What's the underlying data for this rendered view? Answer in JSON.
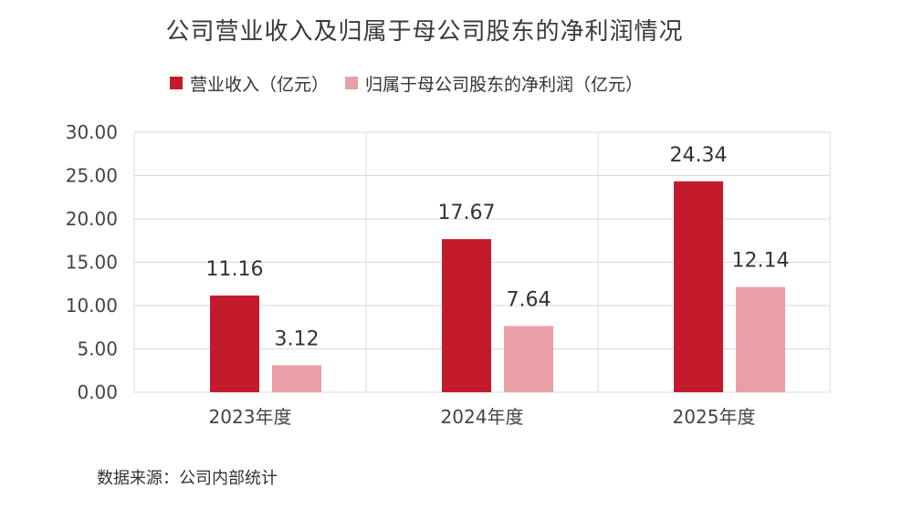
{
  "colors": {
    "revenue": "#c31b2b",
    "net_profit": "#e8a0a6",
    "grid": "#d9d9d9",
    "axis_text": "#444444"
  },
  "chart_data": {
    "type": "bar",
    "title": "公司营业收入及归属于母公司股东的净利润情况",
    "categories": [
      "2023年度",
      "2024年度",
      "2025年度"
    ],
    "series": [
      {
        "name": "营业收入（亿元）",
        "values": [
          11.16,
          17.67,
          24.34
        ]
      },
      {
        "name": "归属于母公司股东的净利润（亿元）",
        "values": [
          3.12,
          7.64,
          12.14
        ]
      }
    ],
    "data_labels": [
      [
        "11.16",
        "17.67",
        "24.34"
      ],
      [
        "3.12",
        "7.64",
        "12.14"
      ]
    ],
    "yticks": [
      "0.00",
      "5.00",
      "10.00",
      "15.00",
      "20.00",
      "25.00",
      "30.00"
    ],
    "ylim": [
      0,
      30
    ],
    "xlabel": "",
    "ylabel": "",
    "grid": true,
    "legend_position": "top"
  },
  "source_note": "数据来源：公司内部统计"
}
